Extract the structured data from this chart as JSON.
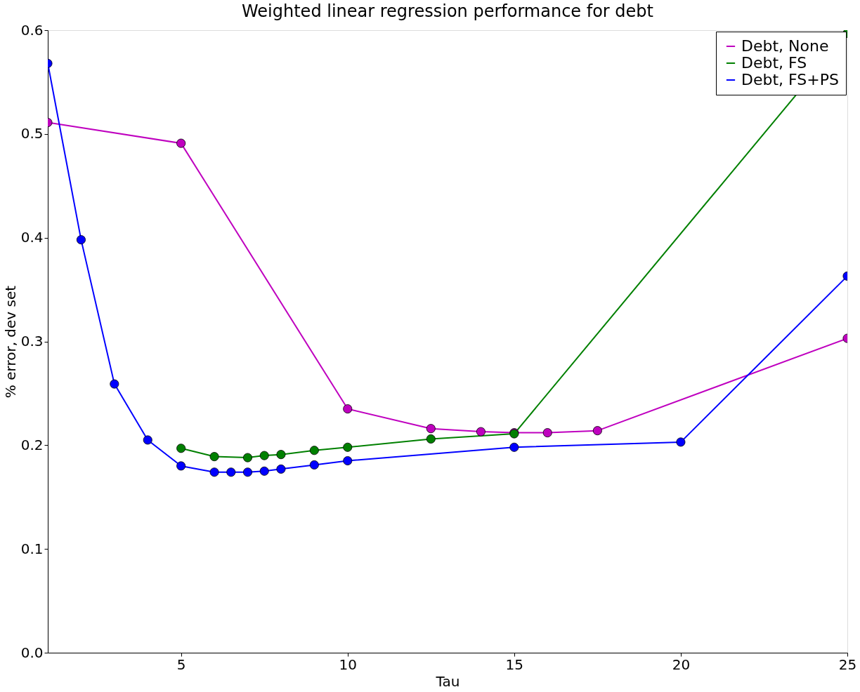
{
  "chart_data": {
    "type": "line",
    "title": "Weighted linear regression performance for debt",
    "xlabel": "Tau",
    "ylabel": "% error, dev set",
    "xlim": [
      1,
      25
    ],
    "xticks": [
      5,
      10,
      15,
      20,
      25
    ],
    "ylim": [
      0,
      0.6
    ],
    "yticks": [
      {
        "value": 0,
        "label": "0.0"
      },
      0.1,
      0.2,
      0.3,
      0.4,
      0.5,
      0.6
    ],
    "grid": false,
    "legend": "top right",
    "marker": "circle",
    "line_style": "solid",
    "series": [
      {
        "name": "Debt, None",
        "color": "#bf00bf",
        "x": [
          1,
          5,
          10,
          12.5,
          14,
          15,
          16,
          17.5,
          25
        ],
        "values": [
          0.511,
          0.491,
          0.235,
          0.216,
          0.213,
          0.212,
          0.212,
          0.214,
          0.303
        ]
      },
      {
        "name": "Debt, FS",
        "color": "#008000",
        "x": [
          5,
          6,
          7,
          7.5,
          8,
          9,
          10,
          12.5,
          15,
          25
        ],
        "values": [
          0.197,
          0.189,
          0.188,
          0.19,
          0.191,
          0.195,
          0.198,
          0.206,
          0.211,
          0.597
        ]
      },
      {
        "name": "Debt, FS+PS",
        "color": "#0000ff",
        "x": [
          1,
          2,
          3,
          4,
          5,
          6,
          6.5,
          7,
          7.5,
          8,
          9,
          10,
          15,
          20,
          25
        ],
        "values": [
          0.568,
          0.398,
          0.259,
          0.205,
          0.18,
          0.174,
          0.174,
          0.174,
          0.175,
          0.177,
          0.181,
          0.185,
          0.198,
          0.203,
          0.363
        ]
      }
    ]
  }
}
